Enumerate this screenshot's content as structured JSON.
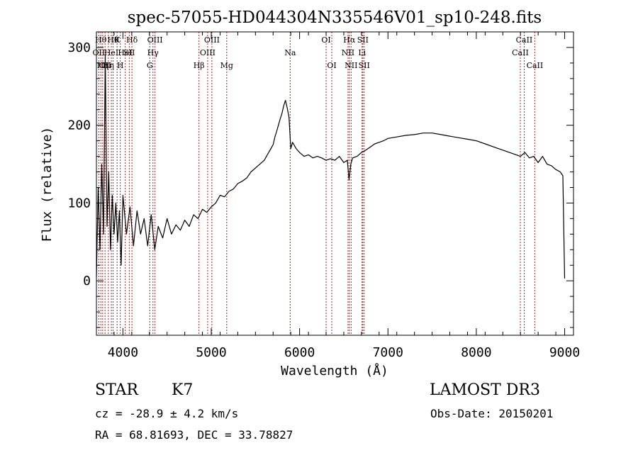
{
  "chart_data": {
    "type": "line",
    "title": "spec-57055-HD044304N335546V01_sp10-248.fits",
    "xlabel": "Wavelength (Å)",
    "ylabel": "Flux (relative)",
    "xlim": [
      3700,
      9100
    ],
    "ylim": [
      -70,
      320
    ],
    "xticks": [
      4000,
      5000,
      6000,
      7000,
      8000,
      9000
    ],
    "yticks": [
      0,
      100,
      200,
      300
    ],
    "line_color": "#000000",
    "marker_color": "#b22222",
    "series": [
      {
        "x": [
          3700,
          3720,
          3740,
          3760,
          3780,
          3800,
          3820,
          3840,
          3860,
          3880,
          3900,
          3920,
          3940,
          3960,
          3980,
          4000,
          4040,
          4080,
          4120,
          4160,
          4200,
          4240,
          4280,
          4320,
          4360,
          4400,
          4450,
          4500,
          4550,
          4600,
          4650,
          4700,
          4750,
          4800,
          4850,
          4900,
          4950,
          5000,
          5050,
          5100,
          5150,
          5200,
          5250,
          5300,
          5350,
          5400,
          5450,
          5500,
          5550,
          5600,
          5650,
          5700,
          5720,
          5740,
          5760,
          5780,
          5800,
          5820,
          5840,
          5860,
          5880,
          5900,
          5920,
          5960,
          6000,
          6050,
          6100,
          6150,
          6200,
          6250,
          6300,
          6350,
          6400,
          6450,
          6500,
          6540,
          6560,
          6580,
          6600,
          6650,
          6700,
          6750,
          6800,
          6850,
          6900,
          6950,
          7000,
          7100,
          7200,
          7300,
          7400,
          7500,
          7600,
          7700,
          7800,
          7900,
          8000,
          8100,
          8200,
          8300,
          8400,
          8500,
          8550,
          8600,
          8650,
          8700,
          8750,
          8800,
          8850,
          8900,
          8950,
          8980,
          9000
        ],
        "values": [
          5,
          120,
          40,
          150,
          60,
          290,
          70,
          140,
          40,
          110,
          60,
          100,
          50,
          90,
          20,
          110,
          60,
          95,
          45,
          90,
          60,
          80,
          45,
          85,
          40,
          70,
          55,
          80,
          60,
          72,
          65,
          78,
          70,
          85,
          80,
          92,
          88,
          95,
          100,
          110,
          108,
          115,
          118,
          125,
          128,
          132,
          140,
          145,
          150,
          155,
          165,
          175,
          185,
          192,
          200,
          208,
          215,
          225,
          232,
          222,
          210,
          170,
          178,
          170,
          165,
          160,
          162,
          158,
          160,
          158,
          155,
          157,
          155,
          160,
          152,
          155,
          130,
          150,
          158,
          160,
          165,
          168,
          172,
          176,
          178,
          180,
          183,
          185,
          187,
          188,
          190,
          190,
          188,
          186,
          184,
          182,
          180,
          176,
          172,
          168,
          164,
          160,
          165,
          158,
          160,
          152,
          160,
          150,
          148,
          143,
          140,
          135,
          3
        ]
      }
    ],
    "line_markers": [
      {
        "x": 3727,
        "label": "OII",
        "row": 1
      },
      {
        "x": 3750,
        "label": "Hθ",
        "row": 0
      },
      {
        "x": 3771,
        "label": "Hη",
        "row": 2
      },
      {
        "x": 3798,
        "label": "OII",
        "row": 2
      },
      {
        "x": 3835,
        "label": "Hη",
        "row": 2
      },
      {
        "x": 3869,
        "label": "HeI",
        "row": 1
      },
      {
        "x": 3889,
        "label": "Hθ",
        "row": 0
      },
      {
        "x": 3934,
        "label": "K",
        "row": 0
      },
      {
        "x": 3970,
        "label": "H",
        "row": 2
      },
      {
        "x": 4026,
        "label": "HeI",
        "row": 1
      },
      {
        "x": 4072,
        "label": "SII",
        "row": 1
      },
      {
        "x": 4102,
        "label": "Hδ",
        "row": 0
      },
      {
        "x": 4304,
        "label": "G",
        "row": 2
      },
      {
        "x": 4340,
        "label": "Hγ",
        "row": 1
      },
      {
        "x": 4363,
        "label": "OIII",
        "row": 0
      },
      {
        "x": 4861,
        "label": "Hβ",
        "row": 2
      },
      {
        "x": 4959,
        "label": "OIII",
        "row": 1
      },
      {
        "x": 5007,
        "label": "OIII",
        "row": 0
      },
      {
        "x": 5175,
        "label": "Mg",
        "row": 2
      },
      {
        "x": 5893,
        "label": "Na",
        "row": 1
      },
      {
        "x": 6300,
        "label": "OI",
        "row": 0
      },
      {
        "x": 6364,
        "label": "OI",
        "row": 2
      },
      {
        "x": 6548,
        "label": "NII",
        "row": 1
      },
      {
        "x": 6563,
        "label": "Hα",
        "row": 0
      },
      {
        "x": 6583,
        "label": "NII",
        "row": 2
      },
      {
        "x": 6707,
        "label": "Li",
        "row": 1
      },
      {
        "x": 6716,
        "label": "SII",
        "row": 0
      },
      {
        "x": 6731,
        "label": "SII",
        "row": 2
      },
      {
        "x": 8498,
        "label": "CaII",
        "row": 1
      },
      {
        "x": 8542,
        "label": "CaII",
        "row": 0
      },
      {
        "x": 8662,
        "label": "CaII",
        "row": 2
      }
    ]
  },
  "info": {
    "object_class": "STAR",
    "subclass": "K7",
    "survey": "LAMOST DR3",
    "cz": "cz = -28.9 ± 4.2 km/s",
    "obs_date": "Obs-Date: 20150201",
    "coords": "RA =  68.81693, DEC =  33.78827"
  }
}
